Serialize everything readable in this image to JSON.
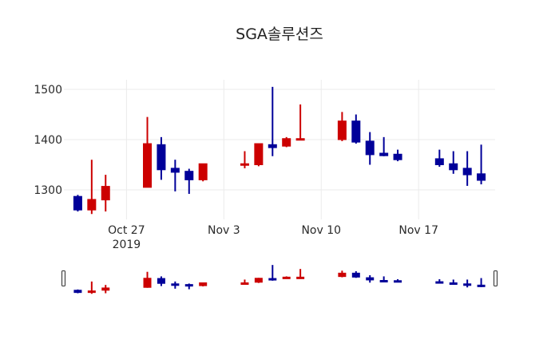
{
  "chart_data": {
    "type": "candlestick",
    "title": "SGA솔루션즈",
    "xlabel": "",
    "ylabel": "",
    "ylim": [
      1240,
      1520
    ],
    "yticks": [
      1300,
      1400,
      1500
    ],
    "xticks": [
      {
        "label": "Oct 27",
        "sublabel": "2019",
        "date": "2019-10-27"
      },
      {
        "label": "Nov 3",
        "sublabel": "",
        "date": "2019-11-03"
      },
      {
        "label": "Nov 10",
        "sublabel": "",
        "date": "2019-11-10"
      },
      {
        "label": "Nov 17",
        "sublabel": "",
        "date": "2019-11-17"
      }
    ],
    "grid": true,
    "legend": false,
    "rangeslider": true,
    "increasing_color": "#cc0000",
    "decreasing_color": "#000099",
    "x_start": "2019-10-22T12:00",
    "x_end": "2019-11-22T12:00",
    "candles": [
      {
        "date": "2019-10-23",
        "open": 1287,
        "high": 1290,
        "low": 1257,
        "close": 1260
      },
      {
        "date": "2019-10-24",
        "open": 1260,
        "high": 1360,
        "low": 1252,
        "close": 1281
      },
      {
        "date": "2019-10-25",
        "open": 1280,
        "high": 1330,
        "low": 1257,
        "close": 1307
      },
      {
        "date": "2019-10-28",
        "open": 1305,
        "high": 1445,
        "low": 1305,
        "close": 1392
      },
      {
        "date": "2019-10-29",
        "open": 1390,
        "high": 1405,
        "low": 1320,
        "close": 1340
      },
      {
        "date": "2019-10-30",
        "open": 1343,
        "high": 1360,
        "low": 1297,
        "close": 1335
      },
      {
        "date": "2019-10-31",
        "open": 1337,
        "high": 1342,
        "low": 1292,
        "close": 1320
      },
      {
        "date": "2019-11-01",
        "open": 1320,
        "high": 1352,
        "low": 1317,
        "close": 1352
      },
      {
        "date": "2019-11-04",
        "open": 1350,
        "high": 1377,
        "low": 1343,
        "close": 1352
      },
      {
        "date": "2019-11-05",
        "open": 1350,
        "high": 1392,
        "low": 1347,
        "close": 1392
      },
      {
        "date": "2019-11-06",
        "open": 1390,
        "high": 1505,
        "low": 1367,
        "close": 1384
      },
      {
        "date": "2019-11-07",
        "open": 1387,
        "high": 1405,
        "low": 1385,
        "close": 1402
      },
      {
        "date": "2019-11-08",
        "open": 1400,
        "high": 1470,
        "low": 1400,
        "close": 1402
      },
      {
        "date": "2019-11-11",
        "open": 1400,
        "high": 1455,
        "low": 1397,
        "close": 1437
      },
      {
        "date": "2019-11-12",
        "open": 1437,
        "high": 1450,
        "low": 1392,
        "close": 1395
      },
      {
        "date": "2019-11-13",
        "open": 1397,
        "high": 1415,
        "low": 1350,
        "close": 1370
      },
      {
        "date": "2019-11-14",
        "open": 1373,
        "high": 1405,
        "low": 1367,
        "close": 1368
      },
      {
        "date": "2019-11-15",
        "open": 1371,
        "high": 1380,
        "low": 1357,
        "close": 1360
      },
      {
        "date": "2019-11-18",
        "open": 1362,
        "high": 1380,
        "low": 1346,
        "close": 1350
      },
      {
        "date": "2019-11-19",
        "open": 1352,
        "high": 1377,
        "low": 1332,
        "close": 1340
      },
      {
        "date": "2019-11-20",
        "open": 1343,
        "high": 1377,
        "low": 1308,
        "close": 1330
      },
      {
        "date": "2019-11-21",
        "open": 1332,
        "high": 1390,
        "low": 1311,
        "close": 1319
      }
    ]
  }
}
